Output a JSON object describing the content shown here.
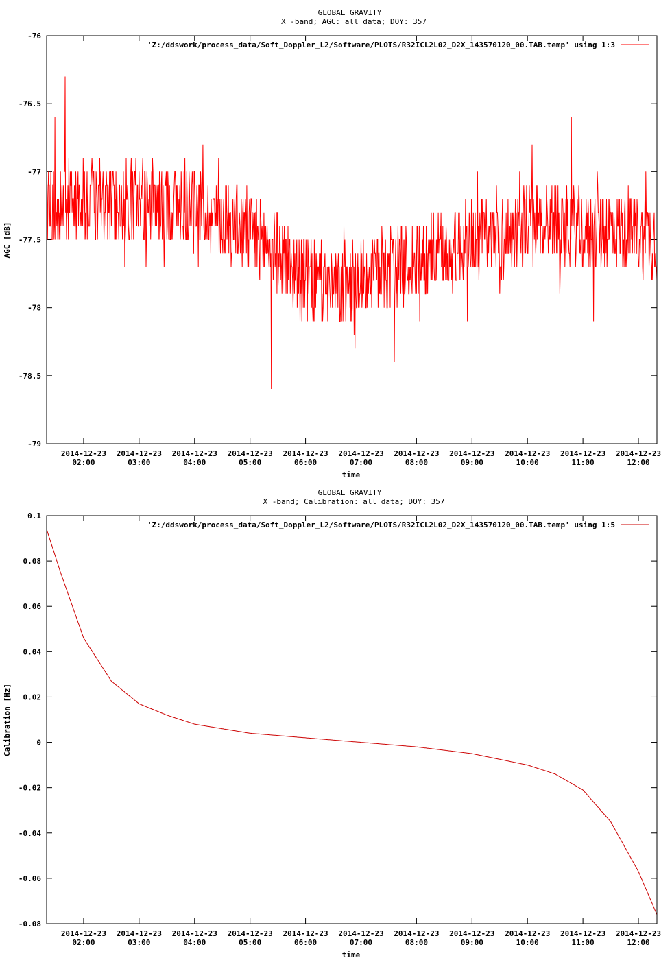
{
  "charts": [
    {
      "title_line1": "GLOBAL GRAVITY",
      "title_line2": "X -band; AGC: all data; DOY: 357",
      "xlabel": "time",
      "ylabel": "AGC [dB]",
      "legend_label": "'Z:/ddswork/process_data/Soft_Doppler_L2/Software/PLOTS/R32ICL2L02_D2X_143570120_00.TAB.temp' using 1:3",
      "yticks": [
        "-76",
        "-76.5",
        "-77",
        "-77.5",
        "-78",
        "-78.5",
        "-79"
      ],
      "xticks_date": [
        "2014-12-23",
        "2014-12-23",
        "2014-12-23",
        "2014-12-23",
        "2014-12-23",
        "2014-12-23",
        "2014-12-23",
        "2014-12-23",
        "2014-12-23",
        "2014-12-23",
        "2014-12-23"
      ],
      "xticks_time": [
        "02:00",
        "03:00",
        "04:00",
        "05:00",
        "06:00",
        "07:00",
        "08:00",
        "09:00",
        "10:00",
        "11:00",
        "12:00"
      ]
    },
    {
      "title_line1": "GLOBAL GRAVITY",
      "title_line2": "X -band; Calibration: all data; DOY: 357",
      "xlabel": "time",
      "ylabel": "Calibration [Hz]",
      "legend_label": "'Z:/ddswork/process_data/Soft_Doppler_L2/Software/PLOTS/R32ICL2L02_D2X_143570120_00.TAB.temp' using 1:5",
      "yticks": [
        "0.1",
        "0.08",
        "0.06",
        "0.04",
        "0.02",
        "0",
        "-0.02",
        "-0.04",
        "-0.06",
        "-0.08"
      ],
      "xticks_date": [
        "2014-12-23",
        "2014-12-23",
        "2014-12-23",
        "2014-12-23",
        "2014-12-23",
        "2014-12-23",
        "2014-12-23",
        "2014-12-23",
        "2014-12-23",
        "2014-12-23",
        "2014-12-23"
      ],
      "xticks_time": [
        "02:00",
        "03:00",
        "04:00",
        "05:00",
        "06:00",
        "07:00",
        "08:00",
        "09:00",
        "10:00",
        "11:00",
        "12:00"
      ]
    }
  ],
  "chart_data": [
    {
      "type": "line",
      "title": "GLOBAL GRAVITY / X -band; AGC: all data; DOY: 357",
      "xlabel": "time",
      "ylabel": "AGC [dB]",
      "xlim": [
        "2014-12-23 01:20",
        "2014-12-23 12:20"
      ],
      "ylim": [
        -79,
        -76
      ],
      "xtick_values": [
        "2014-12-23 02:00",
        "2014-12-23 03:00",
        "2014-12-23 04:00",
        "2014-12-23 05:00",
        "2014-12-23 06:00",
        "2014-12-23 07:00",
        "2014-12-23 08:00",
        "2014-12-23 09:00",
        "2014-12-23 10:00",
        "2014-12-23 11:00",
        "2014-12-23 12:00"
      ],
      "series": [
        {
          "name": "'Z:/ddswork/process_data/Soft_Doppler_L2/Software/PLOTS/R32ICL2L02_D2X_143570120_00.TAB.temp' using 1:3",
          "color": "#ff0000",
          "x": [
            "2014-12-23 01:20",
            "2014-12-23 02:00",
            "2014-12-23 02:30",
            "2014-12-23 03:00",
            "2014-12-23 03:30",
            "2014-12-23 04:00",
            "2014-12-23 04:30",
            "2014-12-23 05:00",
            "2014-12-23 05:30",
            "2014-12-23 06:00",
            "2014-12-23 06:30",
            "2014-12-23 07:00",
            "2014-12-23 07:30",
            "2014-12-23 08:00",
            "2014-12-23 08:30",
            "2014-12-23 09:00",
            "2014-12-23 09:30",
            "2014-12-23 10:00",
            "2014-12-23 10:30",
            "2014-12-23 11:00",
            "2014-12-23 11:30",
            "2014-12-23 12:00",
            "2014-12-23 12:20"
          ],
          "y": [
            -77.25,
            -77.2,
            -77.25,
            -77.2,
            -77.25,
            -77.25,
            -77.35,
            -77.45,
            -77.6,
            -77.8,
            -77.85,
            -77.8,
            -77.7,
            -77.65,
            -77.6,
            -77.5,
            -77.5,
            -77.4,
            -77.35,
            -77.45,
            -77.4,
            -77.45,
            -77.5
          ],
          "noise_amplitude": 0.3,
          "min_spike": -78.6,
          "max_spike": -76.3
        }
      ]
    },
    {
      "type": "line",
      "title": "GLOBAL GRAVITY / X -band; Calibration: all data; DOY: 357",
      "xlabel": "time",
      "ylabel": "Calibration [Hz]",
      "xlim": [
        "2014-12-23 01:20",
        "2014-12-23 12:20"
      ],
      "ylim": [
        -0.08,
        0.1
      ],
      "xtick_values": [
        "2014-12-23 02:00",
        "2014-12-23 03:00",
        "2014-12-23 04:00",
        "2014-12-23 05:00",
        "2014-12-23 06:00",
        "2014-12-23 07:00",
        "2014-12-23 08:00",
        "2014-12-23 09:00",
        "2014-12-23 10:00",
        "2014-12-23 11:00",
        "2014-12-23 12:00"
      ],
      "series": [
        {
          "name": "'Z:/ddswork/process_data/Soft_Doppler_L2/Software/PLOTS/R32ICL2L02_D2X_143570120_00.TAB.temp' using 1:5",
          "color": "#cc0000",
          "x": [
            "2014-12-23 01:20",
            "2014-12-23 01:35",
            "2014-12-23 02:00",
            "2014-12-23 02:30",
            "2014-12-23 03:00",
            "2014-12-23 03:30",
            "2014-12-23 04:00",
            "2014-12-23 05:00",
            "2014-12-23 06:00",
            "2014-12-23 07:00",
            "2014-12-23 08:00",
            "2014-12-23 09:00",
            "2014-12-23 10:00",
            "2014-12-23 10:30",
            "2014-12-23 11:00",
            "2014-12-23 11:30",
            "2014-12-23 12:00",
            "2014-12-23 12:20"
          ],
          "y": [
            0.094,
            0.075,
            0.046,
            0.027,
            0.017,
            0.012,
            0.008,
            0.004,
            0.002,
            0.0,
            -0.002,
            -0.005,
            -0.01,
            -0.014,
            -0.021,
            -0.035,
            -0.057,
            -0.076
          ]
        }
      ]
    }
  ]
}
